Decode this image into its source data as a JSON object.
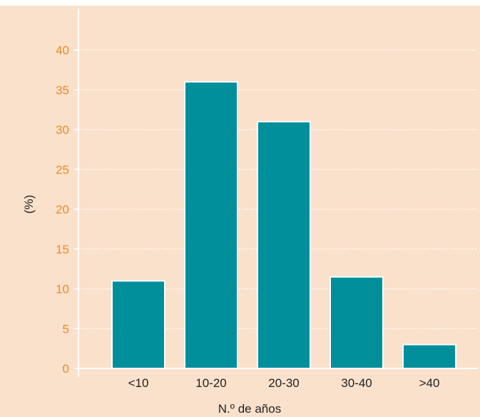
{
  "chart_data": {
    "type": "bar",
    "title": "",
    "xlabel": "N.º de años",
    "ylabel": "(%)",
    "categories": [
      "<10",
      "10-20",
      "20-30",
      "30-40",
      ">40"
    ],
    "values": [
      11,
      36,
      31,
      11.5,
      3
    ],
    "ylim": [
      0,
      45
    ],
    "yticks": [
      0,
      5,
      10,
      15,
      20,
      25,
      30,
      35,
      40
    ],
    "grid": "horizontal dotted",
    "legend": "none",
    "colors": {
      "background": "#fae1cb",
      "bar": "#008f9b",
      "bar_border": "#ffffff",
      "tick_label": "#f08a24",
      "gridline": "#ffffff",
      "axis": "#ffffff"
    }
  }
}
